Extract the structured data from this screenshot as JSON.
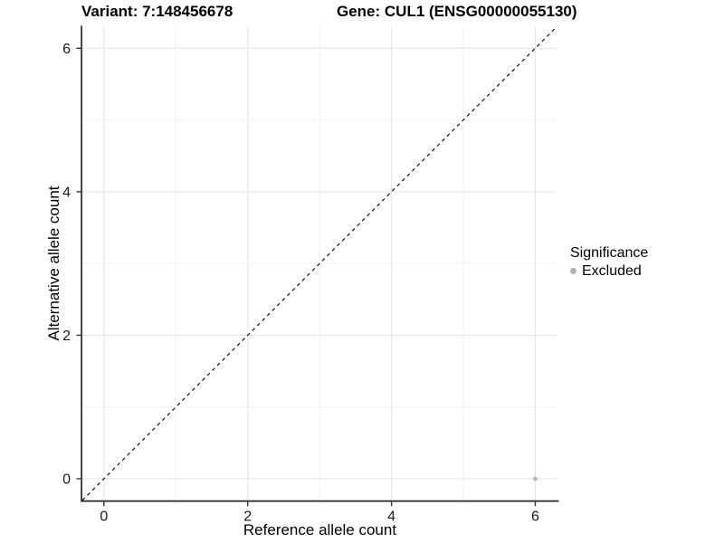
{
  "header": {
    "variant_title": "Variant: 7:148456678",
    "gene_title": "Gene: CUL1 (ENSG00000055130)"
  },
  "chart_data": {
    "type": "scatter",
    "title": "Variant: 7:148456678  /  Gene: CUL1 (ENSG00000055130)",
    "xlabel": "Reference allele count",
    "ylabel": "Alternative allele count",
    "xlim": [
      -0.3,
      6.3
    ],
    "ylim": [
      -0.3,
      6.3
    ],
    "x_ticks": [
      0,
      2,
      4,
      6
    ],
    "y_ticks": [
      0,
      2,
      4,
      6
    ],
    "x_minor_ticks": [
      1,
      3,
      5
    ],
    "y_minor_ticks": [
      1,
      3,
      5
    ],
    "grid": "major+minor",
    "legend_position": "right",
    "series": [
      {
        "name": "Excluded",
        "marker": "dot",
        "color": "#b3b3b3",
        "points": [
          {
            "x": 6,
            "y": 0
          }
        ]
      }
    ],
    "reference_line": {
      "name": "identity-line",
      "style": "dashed",
      "color": "#000000",
      "from": [
        -0.3,
        -0.3
      ],
      "to": [
        6.3,
        6.3
      ]
    }
  },
  "legend": {
    "title": "Significance",
    "items": [
      {
        "label": "Excluded",
        "color": "#b3b3b3"
      }
    ]
  },
  "colors": {
    "background": "#ffffff",
    "grid_major": "#e4e4e4",
    "grid_minor": "#f1f1f1",
    "axis_line": "#333333",
    "tick_mark": "#333333",
    "tick_text": "#1a1a1a",
    "point": "#b3b3b3"
  }
}
